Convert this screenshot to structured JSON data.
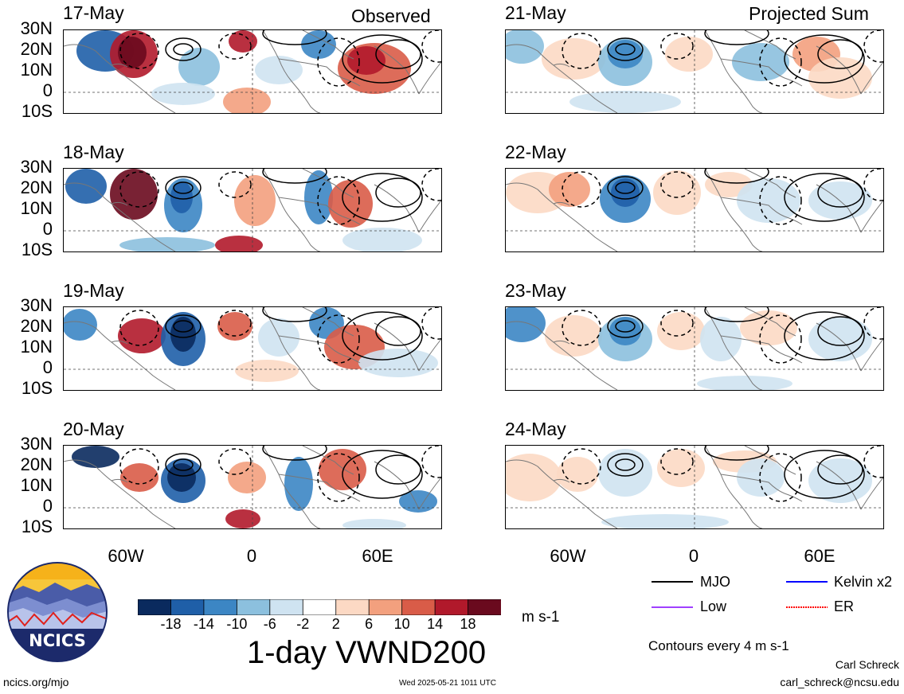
{
  "columns": {
    "left_title": "Observed",
    "right_title": "Projected Sum"
  },
  "panels_left": [
    {
      "date": "17-May"
    },
    {
      "date": "18-May"
    },
    {
      "date": "19-May"
    },
    {
      "date": "20-May"
    }
  ],
  "panels_right": [
    {
      "date": "21-May"
    },
    {
      "date": "22-May"
    },
    {
      "date": "23-May"
    },
    {
      "date": "24-May"
    }
  ],
  "lat_labels": [
    "30N",
    "20N",
    "10N",
    "0",
    "10S"
  ],
  "lon_labels": [
    "60W",
    "0",
    "60E"
  ],
  "colorbar": {
    "colors": [
      "#0a2a5e",
      "#1f5fa8",
      "#3c86c4",
      "#8cc0de",
      "#cfe3f1",
      "#ffffff",
      "#fcd9c4",
      "#f3a07e",
      "#d95c48",
      "#b1192b",
      "#6a0a1e"
    ],
    "tick_labels": [
      "-18",
      "-14",
      "-10",
      "-6",
      "-2",
      "2",
      "6",
      "10",
      "14",
      "18"
    ],
    "units": "m s-1"
  },
  "title": "1-day VWND200",
  "legend": [
    {
      "label": "MJO",
      "color": "#000000"
    },
    {
      "label": "Kelvin x2",
      "color": "#0000ff"
    },
    {
      "label": "Low",
      "color": "#a040ff"
    },
    {
      "label": "ER",
      "color": "#ff0000"
    }
  ],
  "contour_note": "Contours every 4 m s-1",
  "logo_text": "NCICS",
  "footer": {
    "url": "ncics.org/mjo",
    "timestamp": "Wed 2025-05-21 1011 UTC",
    "author": "Carl Schreck",
    "email": "carl_schreck@ncsu.edu"
  }
}
